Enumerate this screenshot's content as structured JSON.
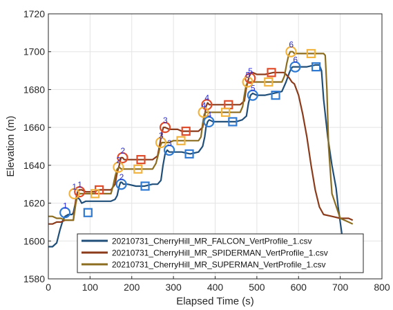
{
  "chart_data": {
    "type": "line",
    "xlabel": "Elapsed Time (s)",
    "ylabel": "Elevation (m)",
    "xlim": [
      0,
      800
    ],
    "ylim": [
      1580,
      1720
    ],
    "xticks": [
      "0",
      "100",
      "200",
      "300",
      "400",
      "500",
      "600",
      "700",
      "800"
    ],
    "yticks": [
      "1580",
      "1600",
      "1620",
      "1640",
      "1660",
      "1680",
      "1700",
      "1720"
    ],
    "grid": true,
    "legend_position": "bottom-center",
    "series": [
      {
        "name": "20210731_CherryHill_MR_FALCON_VertProfile_1.csv",
        "color": "#1f4e79",
        "x": [
          0,
          10,
          20,
          28,
          35,
          40,
          48,
          52,
          57,
          60,
          63,
          67,
          70,
          75,
          80,
          90,
          100,
          120,
          140,
          150,
          160,
          165,
          170,
          173,
          176,
          180,
          190,
          210,
          230,
          250,
          262,
          270,
          275,
          280,
          285,
          290,
          300,
          320,
          340,
          360,
          370,
          375,
          378,
          382,
          386,
          395,
          410,
          430,
          450,
          465,
          475,
          480,
          485,
          490,
          500,
          520,
          540,
          560,
          570,
          578,
          582,
          586,
          590,
          600,
          620,
          640,
          650,
          655,
          660,
          670,
          680,
          690,
          695,
          700,
          705
        ],
        "y": [
          1597,
          1597,
          1599,
          1606,
          1611,
          1613,
          1614,
          1614,
          1614,
          1615,
          1618,
          1622,
          1623,
          1622,
          1620,
          1621,
          1621,
          1621,
          1621,
          1621,
          1622,
          1624,
          1629,
          1631,
          1631,
          1630,
          1630,
          1629,
          1629,
          1630,
          1630,
          1632,
          1640,
          1646,
          1648,
          1647,
          1647,
          1647,
          1646,
          1647,
          1650,
          1655,
          1660,
          1663,
          1664,
          1663,
          1663,
          1663,
          1663,
          1664,
          1666,
          1673,
          1677,
          1678,
          1677,
          1677,
          1678,
          1679,
          1684,
          1689,
          1691,
          1692,
          1692,
          1692,
          1692,
          1693,
          1693,
          1690,
          1675,
          1655,
          1640,
          1628,
          1618,
          1610,
          1602
        ]
      },
      {
        "name": "20210731_CherryHill_MR_SPIDERMAN_VertProfile_1.csv",
        "color": "#8b3a1a",
        "x": [
          0,
          10,
          20,
          30,
          40,
          48,
          52,
          56,
          60,
          62,
          66,
          70,
          74,
          80,
          90,
          100,
          110,
          120,
          130,
          140,
          150,
          160,
          165,
          170,
          174,
          178,
          182,
          190,
          200,
          215,
          230,
          250,
          262,
          268,
          272,
          276,
          280,
          290,
          300,
          310,
          320,
          340,
          360,
          370,
          375,
          378,
          382,
          386,
          392,
          400,
          420,
          440,
          460,
          470,
          474,
          478,
          482,
          486,
          490,
          500,
          520,
          540,
          560,
          565,
          570,
          578,
          584,
          590,
          600,
          610,
          620,
          630,
          640,
          650,
          660,
          680,
          700,
          720,
          730
        ],
        "y": [
          1609,
          1609,
          1610,
          1610,
          1611,
          1611,
          1611,
          1611,
          1611,
          1615,
          1622,
          1626,
          1627,
          1627,
          1626,
          1626,
          1626,
          1627,
          1627,
          1627,
          1627,
          1630,
          1636,
          1640,
          1644,
          1644,
          1643,
          1643,
          1643,
          1643,
          1643,
          1643,
          1645,
          1652,
          1657,
          1660,
          1660,
          1659,
          1659,
          1659,
          1658,
          1658,
          1658,
          1660,
          1666,
          1671,
          1673,
          1672,
          1672,
          1672,
          1672,
          1672,
          1672,
          1674,
          1680,
          1684,
          1687,
          1689,
          1689,
          1688,
          1688,
          1689,
          1689,
          1689,
          1688,
          1686,
          1684,
          1683,
          1677,
          1667,
          1655,
          1640,
          1627,
          1618,
          1614,
          1613,
          1612,
          1612,
          1611
        ]
      },
      {
        "name": "20210731_CherryHill_MR_SUPERMAN_VertProfile_1.csv",
        "color": "#8c6d1f",
        "x": [
          0,
          10,
          20,
          30,
          40,
          48,
          52,
          56,
          60,
          62,
          66,
          70,
          75,
          80,
          90,
          100,
          110,
          120,
          130,
          140,
          150,
          155,
          160,
          165,
          170,
          175,
          180,
          190,
          200,
          215,
          230,
          250,
          258,
          264,
          268,
          272,
          276,
          280,
          290,
          300,
          320,
          340,
          360,
          366,
          370,
          374,
          378,
          382,
          390,
          400,
          420,
          440,
          460,
          466,
          470,
          474,
          478,
          482,
          486,
          490,
          500,
          520,
          540,
          560,
          566,
          572,
          576,
          580,
          586,
          590,
          600,
          620,
          640,
          650,
          660,
          664,
          668,
          672,
          680,
          700,
          720,
          730
        ],
        "y": [
          1613,
          1613,
          1612,
          1612,
          1611,
          1611,
          1611,
          1611,
          1611,
          1614,
          1620,
          1624,
          1625,
          1625,
          1625,
          1625,
          1625,
          1625,
          1625,
          1625,
          1625,
          1629,
          1634,
          1638,
          1639,
          1638,
          1638,
          1638,
          1638,
          1638,
          1638,
          1638,
          1641,
          1646,
          1650,
          1652,
          1652,
          1652,
          1652,
          1653,
          1653,
          1653,
          1653,
          1655,
          1662,
          1667,
          1668,
          1668,
          1668,
          1668,
          1668,
          1668,
          1668,
          1671,
          1677,
          1682,
          1684,
          1684,
          1684,
          1684,
          1684,
          1684,
          1684,
          1684,
          1687,
          1694,
          1698,
          1700,
          1700,
          1699,
          1699,
          1699,
          1699,
          1699,
          1699,
          1698,
          1680,
          1650,
          1625,
          1612,
          1610,
          1609
        ]
      }
    ],
    "circle_markers": [
      {
        "series": 0,
        "x": 40,
        "y": 1615,
        "label": "1"
      },
      {
        "series": 0,
        "x": 175,
        "y": 1630,
        "label": "2"
      },
      {
        "series": 0,
        "x": 290,
        "y": 1648,
        "label": "3"
      },
      {
        "series": 0,
        "x": 385,
        "y": 1663,
        "label": "4"
      },
      {
        "series": 0,
        "x": 490,
        "y": 1677,
        "label": "5"
      },
      {
        "series": 0,
        "x": 592,
        "y": 1692,
        "label": "6"
      },
      {
        "series": 1,
        "x": 75,
        "y": 1626,
        "label": "1"
      },
      {
        "series": 1,
        "x": 178,
        "y": 1644,
        "label": "2"
      },
      {
        "series": 1,
        "x": 280,
        "y": 1660,
        "label": "3"
      },
      {
        "series": 1,
        "x": 380,
        "y": 1672,
        "label": "4"
      },
      {
        "series": 1,
        "x": 484,
        "y": 1686,
        "label": "5"
      },
      {
        "series": 2,
        "x": 62,
        "y": 1625,
        "label": "1"
      },
      {
        "series": 2,
        "x": 168,
        "y": 1639,
        "label": "2"
      },
      {
        "series": 2,
        "x": 270,
        "y": 1652,
        "label": "3"
      },
      {
        "series": 2,
        "x": 372,
        "y": 1668,
        "label": "4"
      },
      {
        "series": 2,
        "x": 478,
        "y": 1684,
        "label": "5"
      },
      {
        "series": 2,
        "x": 582,
        "y": 1700,
        "label": "6"
      }
    ],
    "square_markers": [
      {
        "series": 0,
        "x": 95,
        "y": 1615
      },
      {
        "series": 0,
        "x": 232,
        "y": 1629
      },
      {
        "series": 0,
        "x": 338,
        "y": 1646
      },
      {
        "series": 0,
        "x": 442,
        "y": 1663
      },
      {
        "series": 0,
        "x": 545,
        "y": 1677
      },
      {
        "series": 0,
        "x": 642,
        "y": 1692
      },
      {
        "series": 1,
        "x": 122,
        "y": 1627
      },
      {
        "series": 1,
        "x": 222,
        "y": 1643
      },
      {
        "series": 1,
        "x": 330,
        "y": 1658
      },
      {
        "series": 1,
        "x": 432,
        "y": 1672
      },
      {
        "series": 1,
        "x": 535,
        "y": 1689
      },
      {
        "series": 2,
        "x": 112,
        "y": 1625
      },
      {
        "series": 2,
        "x": 215,
        "y": 1638
      },
      {
        "series": 2,
        "x": 318,
        "y": 1653
      },
      {
        "series": 2,
        "x": 425,
        "y": 1668
      },
      {
        "series": 2,
        "x": 528,
        "y": 1684
      },
      {
        "series": 2,
        "x": 630,
        "y": 1699
      }
    ]
  }
}
